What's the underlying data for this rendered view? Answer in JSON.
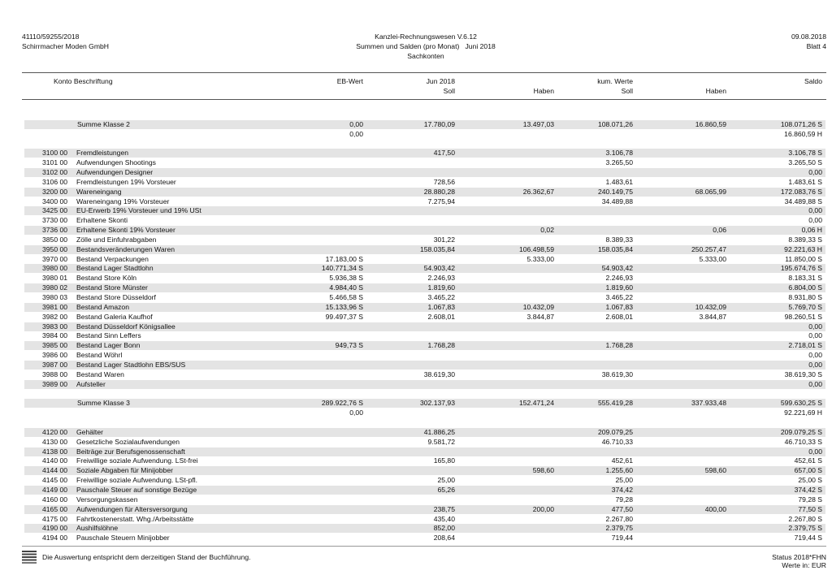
{
  "header": {
    "client_no": "41110/59255/2018",
    "company": "Schirrmacher Moden GmbH",
    "program": "Kanzlei-Rechnungswesen V.6.12",
    "report": "Summen und Salden (pro Monat)   Juni 2018",
    "section": "Sachkonten",
    "date": "09.08.2018",
    "sheet": "Blatt 4"
  },
  "columns": {
    "account": "Konto Beschriftung",
    "eb": "EB-Wert",
    "month": "Jun 2018",
    "soll": "Soll",
    "haben": "Haben",
    "cumulative": "kum. Werte",
    "kum_soll": "Soll",
    "kum_haben": "Haben",
    "saldo": "Saldo"
  },
  "blocks": [
    {
      "rows": [
        {
          "label": "Summe Klasse 2",
          "eb": "0,00",
          "soll": "17.780,09",
          "haben": "13.497,03",
          "kum_soll": "108.071,26",
          "kum_haben": "16.860,59",
          "saldo": "108.071,26 S"
        },
        {
          "eb": "0,00",
          "saldo": "16.860,59 H"
        }
      ]
    },
    {
      "rows": [
        {
          "konto": "3100 00",
          "label": "Fremdleistungen",
          "soll": "417,50",
          "kum_soll": "3.106,78",
          "saldo": "3.106,78 S"
        },
        {
          "konto": "3101 00",
          "label": "Aufwendungen Shootings",
          "kum_soll": "3.265,50",
          "saldo": "3.265,50 S"
        },
        {
          "konto": "3102 00",
          "label": "Aufwendungen Designer",
          "saldo": "0,00"
        },
        {
          "konto": "3106 00",
          "label": "Fremdleistungen 19% Vorsteuer",
          "soll": "728,56",
          "kum_soll": "1.483,61",
          "saldo": "1.483,61 S"
        },
        {
          "konto": "3200 00",
          "label": "Wareneingang",
          "soll": "28.880,28",
          "haben": "26.362,67",
          "kum_soll": "240.149,75",
          "kum_haben": "68.065,99",
          "saldo": "172.083,76 S"
        },
        {
          "konto": "3400 00",
          "label": "Wareneingang 19% Vorsteuer",
          "soll": "7.275,94",
          "kum_soll": "34.489,88",
          "saldo": "34.489,88 S"
        },
        {
          "konto": "3425 00",
          "label": "EU-Erwerb 19% Vorsteuer und 19% USt",
          "saldo": "0,00"
        },
        {
          "konto": "3730 00",
          "label": "Erhaltene Skonti",
          "saldo": "0,00"
        },
        {
          "konto": "3736 00",
          "label": "Erhaltene Skonti 19% Vorsteuer",
          "haben": "0,02",
          "kum_haben": "0,06",
          "saldo": "0,06 H"
        },
        {
          "konto": "3850 00",
          "label": "Zölle und Einfuhrabgaben",
          "soll": "301,22",
          "kum_soll": "8.389,33",
          "saldo": "8.389,33 S"
        },
        {
          "konto": "3950 00",
          "label": "Bestandsveränderungen Waren",
          "soll": "158.035,84",
          "haben": "106.498,59",
          "kum_soll": "158.035,84",
          "kum_haben": "250.257,47",
          "saldo": "92.221,63 H"
        },
        {
          "konto": "3970 00",
          "label": "Bestand Verpackungen",
          "eb": "17.183,00 S",
          "haben": "5.333,00",
          "kum_haben": "5.333,00",
          "saldo": "11.850,00 S"
        },
        {
          "konto": "3980 00",
          "label": "Bestand Lager Stadtlohn",
          "eb": "140.771,34 S",
          "soll": "54.903,42",
          "kum_soll": "54.903,42",
          "saldo": "195.674,76 S"
        },
        {
          "konto": "3980 01",
          "label": "Bestand Store Köln",
          "eb": "5.936,38 S",
          "soll": "2.246,93",
          "kum_soll": "2.246,93",
          "saldo": "8.183,31 S"
        },
        {
          "konto": "3980 02",
          "label": "Bestand Store Münster",
          "eb": "4.984,40 S",
          "soll": "1.819,60",
          "kum_soll": "1.819,60",
          "saldo": "6.804,00 S"
        },
        {
          "konto": "3980 03",
          "label": "Bestand Store Düsseldorf",
          "eb": "5.466,58 S",
          "soll": "3.465,22",
          "kum_soll": "3.465,22",
          "saldo": "8.931,80 S"
        },
        {
          "konto": "3981 00",
          "label": "Bestand Amazon",
          "eb": "15.133,96 S",
          "soll": "1.067,83",
          "haben": "10.432,09",
          "kum_soll": "1.067,83",
          "kum_haben": "10.432,09",
          "saldo": "5.769,70 S"
        },
        {
          "konto": "3982 00",
          "label": "Bestand Galeria Kaufhof",
          "eb": "99.497,37 S",
          "soll": "2.608,01",
          "haben": "3.844,87",
          "kum_soll": "2.608,01",
          "kum_haben": "3.844,87",
          "saldo": "98.260,51 S"
        },
        {
          "konto": "3983 00",
          "label": "Bestand Düsseldorf Königsallee",
          "saldo": "0,00"
        },
        {
          "konto": "3984 00",
          "label": "Bestand Sinn Leffers",
          "saldo": "0,00"
        },
        {
          "konto": "3985 00",
          "label": "Bestand Lager Bonn",
          "eb": "949,73 S",
          "soll": "1.768,28",
          "kum_soll": "1.768,28",
          "saldo": "2.718,01 S"
        },
        {
          "konto": "3986 00",
          "label": "Bestand Wöhrl",
          "saldo": "0,00"
        },
        {
          "konto": "3987 00",
          "label": "Bestand Lager Stadtlohn EBS/SUS",
          "saldo": "0,00"
        },
        {
          "konto": "3988 00",
          "label": "Bestand Waren",
          "soll": "38.619,30",
          "kum_soll": "38.619,30",
          "saldo": "38.619,30 S"
        },
        {
          "konto": "3989 00",
          "label": "Aufsteller",
          "saldo": "0,00"
        }
      ]
    },
    {
      "rows": [
        {
          "label": "Summe Klasse 3",
          "eb": "289.922,76 S",
          "soll": "302.137,93",
          "haben": "152.471,24",
          "kum_soll": "555.419,28",
          "kum_haben": "337.933,48",
          "saldo": "599.630,25 S"
        },
        {
          "eb": "0,00",
          "saldo": "92.221,69 H"
        }
      ]
    },
    {
      "rows": [
        {
          "konto": "4120 00",
          "label": "Gehälter",
          "soll": "41.886,25",
          "kum_soll": "209.079,25",
          "saldo": "209.079,25 S"
        },
        {
          "konto": "4130 00",
          "label": "Gesetzliche Sozialaufwendungen",
          "soll": "9.581,72",
          "kum_soll": "46.710,33",
          "saldo": "46.710,33 S"
        },
        {
          "konto": "4138 00",
          "label": "Beiträge zur Berufsgenossenschaft",
          "saldo": "0,00"
        },
        {
          "konto": "4140 00",
          "label": "Freiwillige soziale Aufwendung. LSt-frei",
          "soll": "165,80",
          "kum_soll": "452,61",
          "saldo": "452,61 S"
        },
        {
          "konto": "4144 00",
          "label": "Soziale Abgaben für Minijobber",
          "haben": "598,60",
          "kum_soll": "1.255,60",
          "kum_haben": "598,60",
          "saldo": "657,00 S"
        },
        {
          "konto": "4145 00",
          "label": "Freiwillige soziale Aufwendung. LSt-pfl.",
          "soll": "25,00",
          "kum_soll": "25,00",
          "saldo": "25,00 S"
        },
        {
          "konto": "4149 00",
          "label": "Pauschale Steuer auf sonstige Bezüge",
          "soll": "65,26",
          "kum_soll": "374,42",
          "saldo": "374,42 S"
        },
        {
          "konto": "4160 00",
          "label": "Versorgungskassen",
          "kum_soll": "79,28",
          "saldo": "79,28 S"
        },
        {
          "konto": "4165 00",
          "label": "Aufwendungen für Altersversorgung",
          "soll": "238,75",
          "haben": "200,00",
          "kum_soll": "477,50",
          "kum_haben": "400,00",
          "saldo": "77,50 S"
        },
        {
          "konto": "4175 00",
          "label": "Fahrtkostenerstatt. Whg./Arbeitsstätte",
          "soll": "435,40",
          "kum_soll": "2.267,80",
          "saldo": "2.267,80 S"
        },
        {
          "konto": "4190 00",
          "label": "Aushilfslöhne",
          "soll": "852,00",
          "kum_soll": "2.379,75",
          "saldo": "2.379,75 S"
        },
        {
          "konto": "4194 00",
          "label": "Pauschale Steuern Minijobber",
          "soll": "208,64",
          "kum_soll": "719,44",
          "saldo": "719,44 S"
        }
      ]
    }
  ],
  "footer": {
    "note": "Die Auswertung entspricht dem derzeitigen Stand der Buchführung.",
    "status": "Status 2018*FHN",
    "currency": "Werte in: EUR"
  }
}
